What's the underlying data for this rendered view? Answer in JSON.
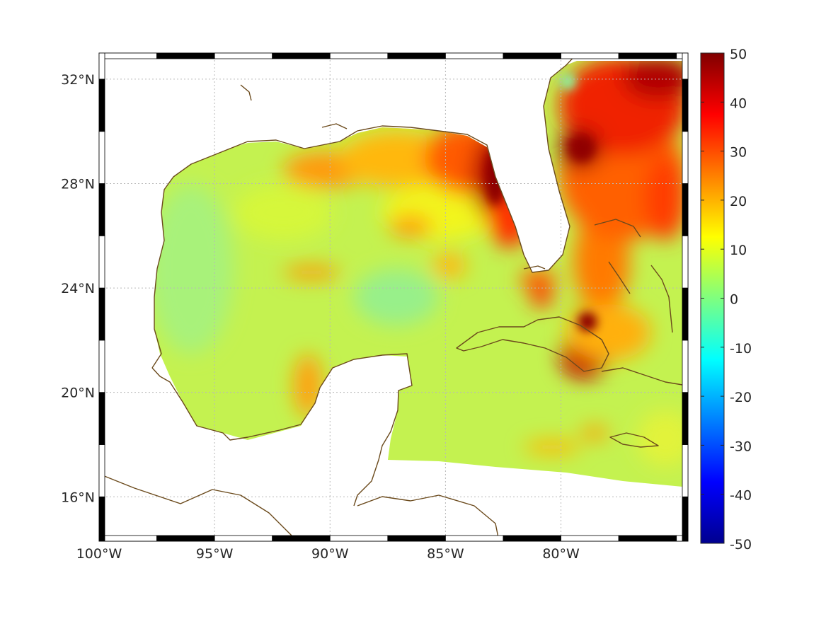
{
  "map": {
    "lon_range": [
      -100,
      -74.5
    ],
    "lat_range": [
      14.3,
      33.0
    ],
    "lon_ticks": [
      {
        "value": -100,
        "label": "100°W"
      },
      {
        "value": -95,
        "label": "95°W"
      },
      {
        "value": -90,
        "label": "90°W"
      },
      {
        "value": -85,
        "label": "85°W"
      },
      {
        "value": -80,
        "label": "80°W"
      }
    ],
    "lat_ticks": [
      {
        "value": 32,
        "label": "32°N"
      },
      {
        "value": 28,
        "label": "28°N"
      },
      {
        "value": 24,
        "label": "24°N"
      },
      {
        "value": 20,
        "label": "20°N"
      },
      {
        "value": 16,
        "label": "16°N"
      }
    ],
    "grid": true,
    "frame": "black-white dashed border",
    "coastline_color": "#6b4a1c",
    "colormap": "jet"
  },
  "colorbar": {
    "min": -50,
    "max": 50,
    "ticks": [
      "50",
      "40",
      "30",
      "20",
      "10",
      "0",
      "-10",
      "-20",
      "-30",
      "-40",
      "-50"
    ],
    "placement": "right"
  }
}
